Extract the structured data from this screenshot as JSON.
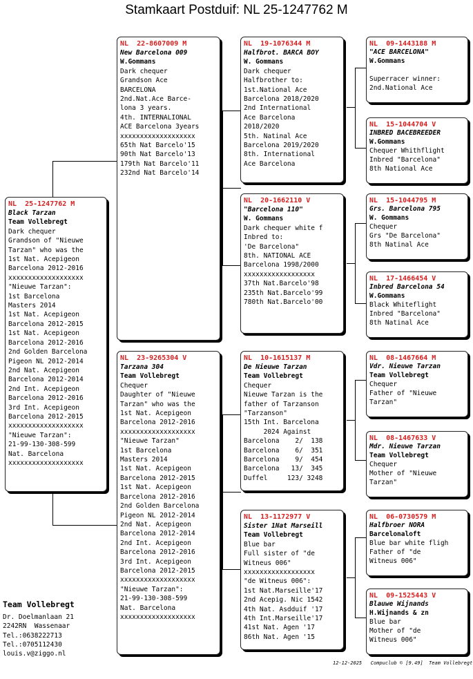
{
  "title": "Stamkaart Postduif: NL  25-1247762 M",
  "pigeons": {
    "p0": {
      "ring": "NL  25-1247762 M",
      "name": "Black Tarzan",
      "owner": "Team Vollebregt",
      "lines": [
        "Dark chequer",
        "Grandson of \"Nieuwe",
        "Tarzan\" who was the",
        "1st Nat. Acepigeon",
        "Barcelona 2012-2016",
        "xxxxxxxxxxxxxxxxxxx",
        "\"Nieuwe Tarzan\":",
        "1st Barcelona",
        "Masters 2014",
        "1st Nat. Acepigeon",
        "Barcelona 2012-2015",
        "1st Nat. Acepigeon",
        "Barcelona 2012-2016",
        "2nd Golden Barcelona",
        "Pigeon NL 2012-2014",
        "2nd Nat. Acepigeon",
        "Barcelona 2012-2014",
        "2nd Int. Acepigeon",
        "Barcelona 2012-2016",
        "3rd Int. Acepigeon",
        "Barcelona 2012-2015",
        "xxxxxxxxxxxxxxxxxxx",
        "\"Nieuwe Tarzan\":",
        "21-99-130-308-599",
        "Nat. Barcelona",
        "xxxxxxxxxxxxxxxxxxx"
      ]
    },
    "p1": {
      "ring": "NL  22-8607009 M",
      "name": "New Barcelona 009",
      "owner": "W.Gommans",
      "lines": [
        "Dark chequer",
        "Grandson Ace",
        "BARCELONA",
        "2nd.Nat.Ace Barce-",
        "lona 3 years.",
        "4th. INTERNALIONAL",
        "ACE Barcelona 3years",
        "xxxxxxxxxxxxxxxxxxx",
        "65th Nat Barcelo'15",
        "90th Nat Barcelo'13",
        "179th Nat Barcelo'11",
        "232nd Nat Barcelo'14"
      ]
    },
    "p2": {
      "ring": "NL  23-9265304 V",
      "name": "Tarzana 304",
      "owner": "Team Vollebregt",
      "lines": [
        "Chequer",
        "Daughter of \"Nieuwe",
        "Tarzan\" who was the",
        "1st Nat. Acepigeon",
        "Barcelona 2012-2016",
        "xxxxxxxxxxxxxxxxxxx",
        "\"Nieuwe Tarzan\"",
        "1st Barcelona",
        "Masters 2014",
        "1st Nat. Acepigeon",
        "Barcelona 2012-2015",
        "1st Nat. Acepigeon",
        "Barcelona 2012-2016",
        "2nd Golden Barcelona",
        "Pigeon NL 2012-2014",
        "2nd Nat. Acepigeon",
        "Barcelona 2012-2014",
        "2nd Int. Acepigeon",
        "Barcelona 2012-2016",
        "3rd Int. Acepigeon",
        "Barcelona 2012-2015",
        "xxxxxxxxxxxxxxxxxxx",
        "\"Nieuwe Tarzan\":",
        "21-99-130-308-599",
        "Nat. Barcelona",
        "xxxxxxxxxxxxxxxxxxx"
      ]
    },
    "p3": {
      "ring": "NL  19-1076344 M",
      "name": "Halfbrot. BARCA BOY",
      "owner": "W. Gommans",
      "lines": [
        "Dark chequer",
        "Halfbrother to:",
        "1st.National Ace",
        "Barcelona 2018/2020",
        "2nd International",
        "Ace Barcelona",
        "2018/2020",
        "5th. Natinal Ace",
        "Barcelona 2019/2020",
        "8th. International",
        "Ace Barcelona"
      ]
    },
    "p4": {
      "ring": "NL  20-1662110 V",
      "name": "\"Barcelona 110\"",
      "owner": "W. Gommans",
      "lines": [
        "Dark chequer white f",
        "Inbred to:",
        "'De Barcelona\"",
        "8th. NATIONAL ACE",
        "Barcelona 1998/2000",
        "xxxxxxxxxxxxxxxxxx",
        "37th Nat.Barcelo'98",
        "235th Nat.Barcelo'99",
        "780th Nat.Barcelo'00"
      ]
    },
    "p5": {
      "ring": "NL  10-1615137 M",
      "name": "De Nieuwe Tarzan",
      "owner": "Team Vollebregt",
      "lines": [
        "Chequer",
        "Nieuwe Tarzan is the",
        "father of Tarzanson",
        "\"Tarzanson\"",
        "15th Int. Barcelona",
        "     2024 Against",
        "Barcelona    2/  138",
        "Barcelona    6/  351",
        "Barcelona    9/  454",
        "Barcelona   13/  345",
        "Duffel     123/ 3248"
      ]
    },
    "p6": {
      "ring": "NL  13-1172977 V",
      "name": "Sister 1Nat Marseill",
      "owner": "Team Vollebregt",
      "lines": [
        "Blue bar",
        "Full sister of \"de",
        "Witneus 006\"",
        "xxxxxxxxxxxxxxxxxx",
        "\"de Witneus 006\":",
        "1st Nat.Marseille'17",
        "2nd Acepig. Nic 1542",
        "4th Nat. Asdduif '17",
        "4th Int.Marseille'17",
        "41st Nat. Agen '17",
        "86th Nat. Agen '15"
      ]
    },
    "p7": {
      "ring": "NL  09-1443188 M",
      "name": "\"ACE BARCELONA\"",
      "owner": "W.Gommans",
      "lines": [
        "",
        "Superracer winner:",
        "2nd.National Ace"
      ]
    },
    "p8": {
      "ring": "NL  15-1044704 V",
      "name": "INBRED BACEBREEDER",
      "owner": "W.Gommans",
      "lines": [
        "Chequer Whithflight",
        "Inbred \"Barcelona\"",
        "8th National Ace"
      ]
    },
    "p9": {
      "ring": "NL  15-1044795 M",
      "name": "Grs. Barcelona 795",
      "owner": "W. Gommans",
      "lines": [
        "Chequer",
        "Grs \"De Barcelona\"",
        "8th Natinal Ace"
      ]
    },
    "p10": {
      "ring": "NL  17-1466454 V",
      "name": "Inbred Barcelona 54",
      "owner": "W.Gommans",
      "lines": [
        "Black Whiteflight",
        "Inbred \"Barcelona\"",
        "8th Natinal Ace"
      ]
    },
    "p11": {
      "ring": "NL  08-1467664 M",
      "name": "Vdr. Nieuwe Tarzan",
      "owner": "Team Vollebregt",
      "lines": [
        "Chequer",
        "Father of \"Nieuwe",
        "Tarzan\""
      ]
    },
    "p12": {
      "ring": "NL  08-1467633 V",
      "name": "Mdr. Nieuwe Tarzan",
      "owner": "Team Vollebregt",
      "lines": [
        "Chequer",
        "Mother of \"Nieuwe",
        "Tarzan\""
      ]
    },
    "p13": {
      "ring": "NL  06-0730579 M",
      "name": "Halfbroer NORA",
      "owner": "Barcelonaloft",
      "lines": [
        "Blue bar white fligh",
        "Father of \"de",
        "Witneus 006\""
      ]
    },
    "p14": {
      "ring": "NL  09-1525443 V",
      "name": "Blauwe Wijnands",
      "owner": "H.Wijnands & zn",
      "lines": [
        "Blue bar",
        "Mother of \"de",
        "Witneus 006\""
      ]
    }
  },
  "footer": {
    "owner": "Team Vollebregt",
    "lines": [
      "Dr. Doelmanlaan 21",
      "2242RN  Wassenaar",
      "Tel.:0638222713",
      "Tel.:0705112430",
      "louis.v@ziggo.nl"
    ],
    "credit": "12-12-2025   Compuclub © [9.49]  Team Vollebregt"
  }
}
